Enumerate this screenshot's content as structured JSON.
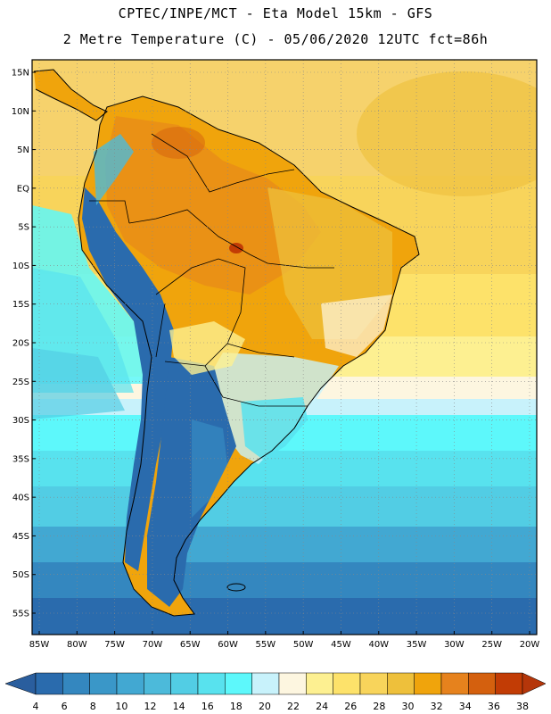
{
  "header": {
    "line1": "CPTEC/INPE/MCT -  Eta Model 15km - GFS",
    "line2": "2 Metre Temperature (C) - 05/06/2020 12UTC fct=86h"
  },
  "map": {
    "lat_labels": [
      "15N",
      "10N",
      "5N",
      "EQ",
      "5S",
      "10S",
      "15S",
      "20S",
      "25S",
      "30S",
      "35S",
      "40S",
      "45S",
      "50S",
      "55S"
    ],
    "lon_labels": [
      "85W",
      "80W",
      "75W",
      "70W",
      "65W",
      "60W",
      "55W",
      "50W",
      "45W",
      "40W",
      "35W",
      "30W",
      "25W",
      "20W"
    ],
    "lat_range": [
      15,
      -55
    ],
    "lon_range": [
      -85,
      -20
    ],
    "grid": "dotted"
  },
  "colorbar": {
    "labels": [
      "4",
      "6",
      "8",
      "10",
      "12",
      "14",
      "16",
      "18",
      "20",
      "22",
      "24",
      "26",
      "28",
      "30",
      "32",
      "34",
      "36",
      "38"
    ],
    "colors": [
      "#2a6bad",
      "#3487bf",
      "#3a97c8",
      "#42a8d2",
      "#4cbada",
      "#52cde4",
      "#58e2ee",
      "#5df8fb",
      "#c8f2fb",
      "#fdf6e0",
      "#fdf091",
      "#fde26a",
      "#f8d45b",
      "#eec03b",
      "#f0a40c",
      "#e6821d",
      "#d4600e",
      "#c23c05"
    ],
    "left_end_color": "#2a5e9e",
    "right_end_color": "#b5360a"
  }
}
